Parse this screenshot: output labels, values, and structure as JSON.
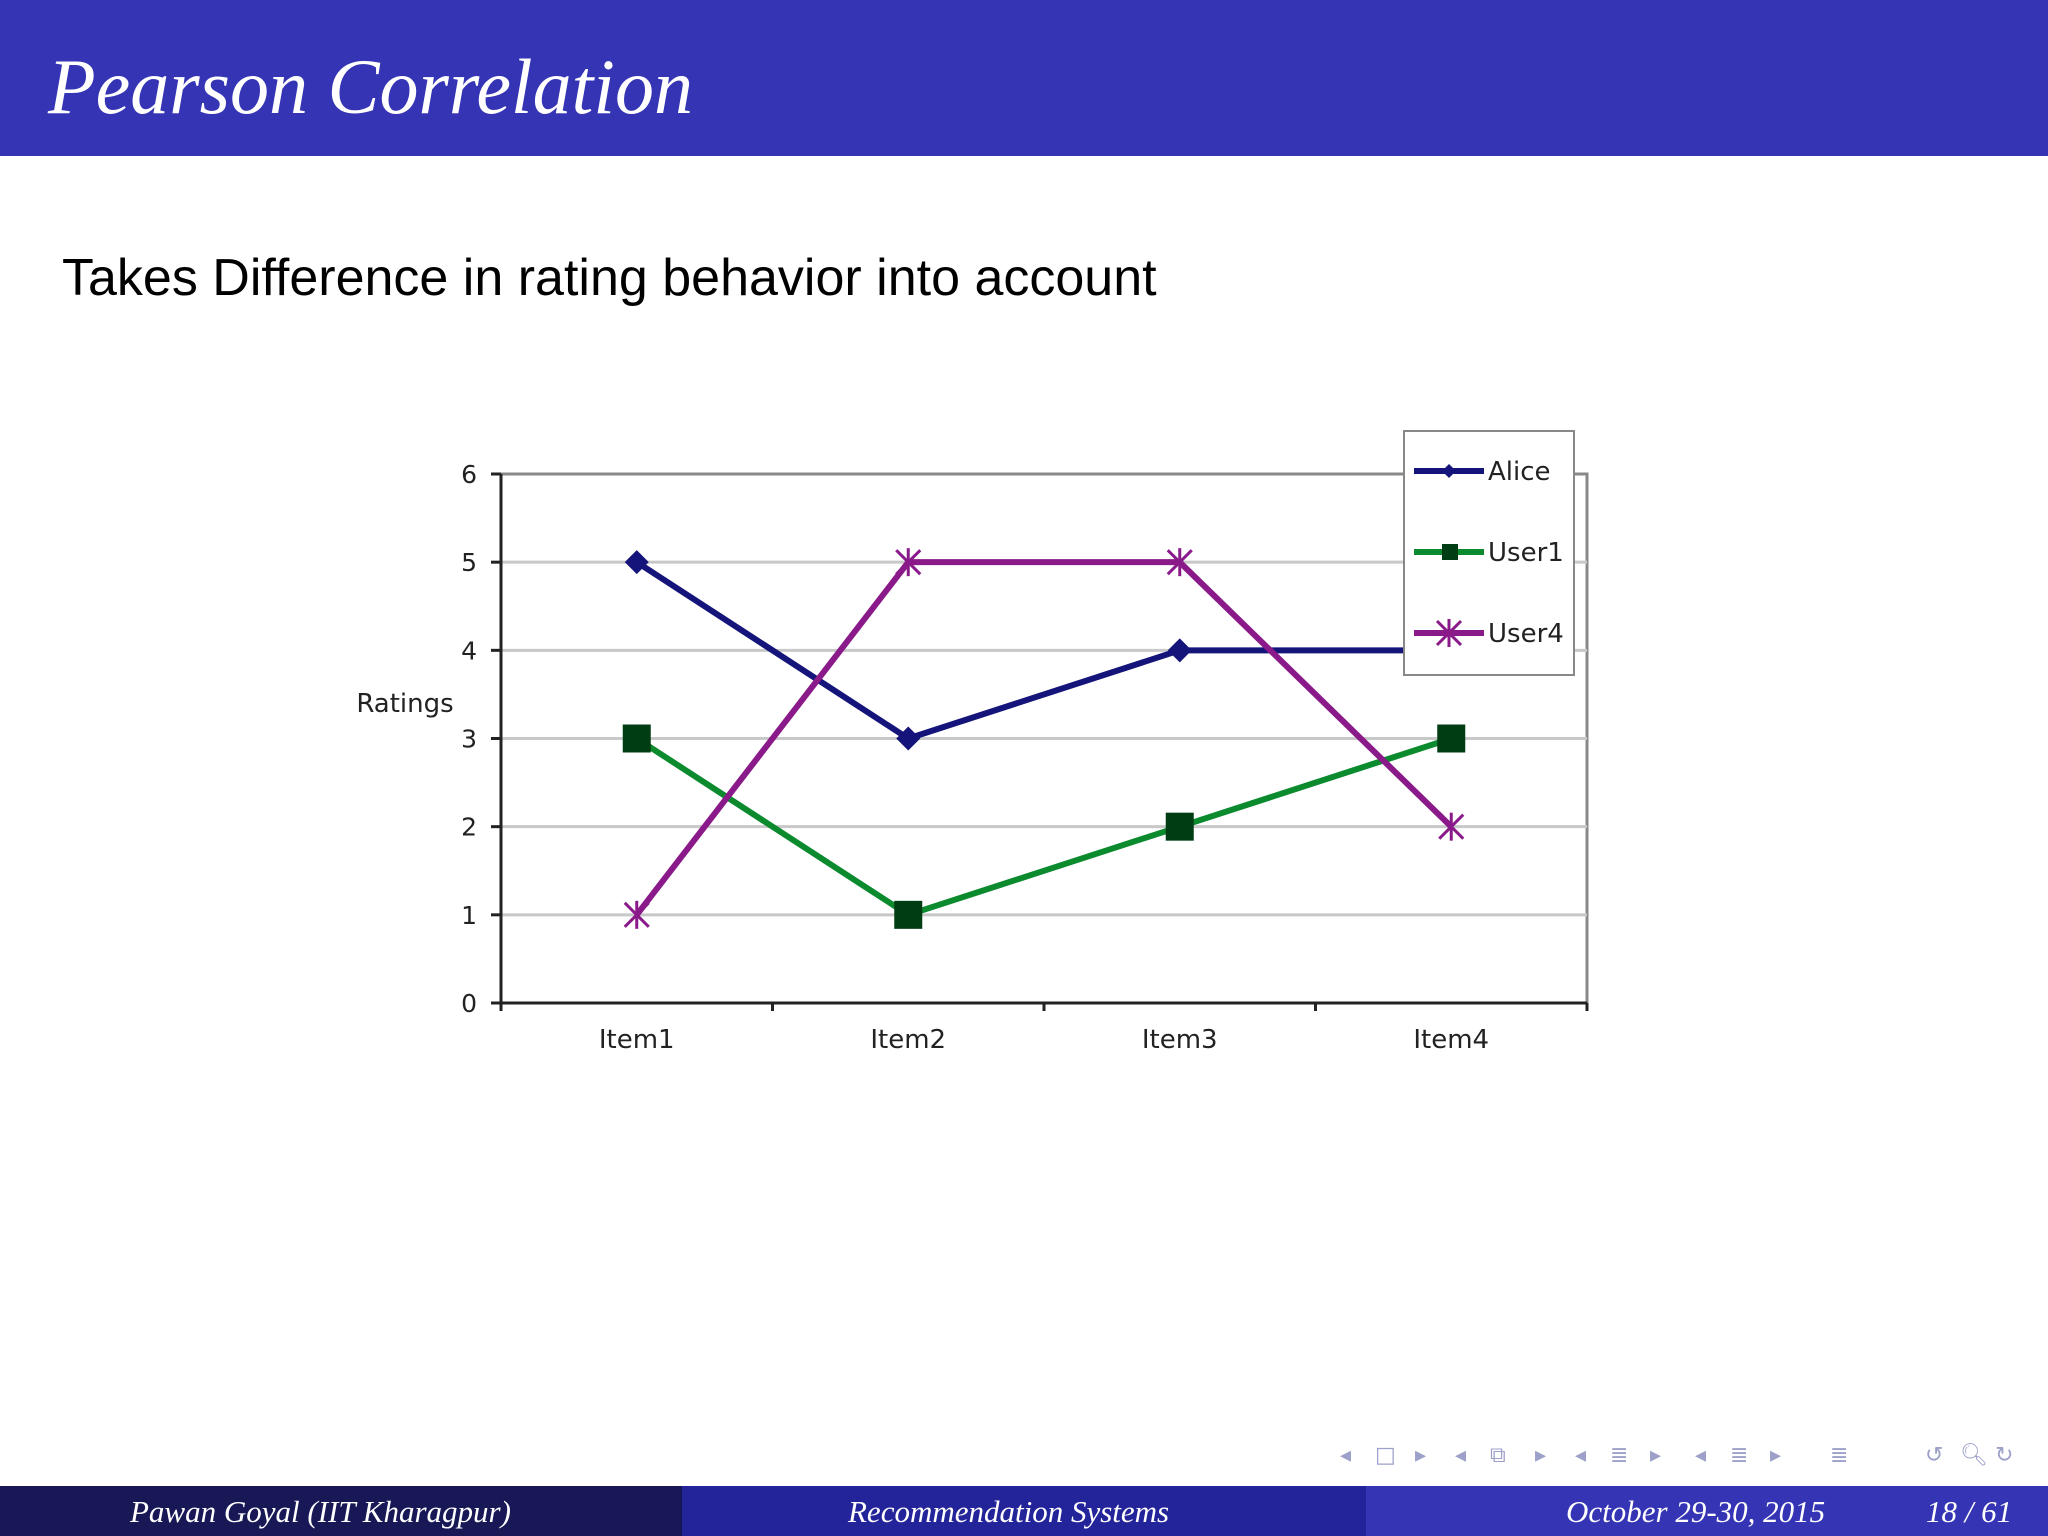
{
  "slide": {
    "title": "Pearson Correlation",
    "subtitle": "Takes Difference in rating behavior into account"
  },
  "chart_data": {
    "type": "line",
    "categories": [
      "Item1",
      "Item2",
      "Item3",
      "Item4"
    ],
    "ylabel": "Ratings",
    "xlabel": "",
    "ylim": [
      0,
      6
    ],
    "yticks": [
      0,
      1,
      2,
      3,
      4,
      5,
      6
    ],
    "grid": true,
    "legend_position": "top-right",
    "series": [
      {
        "name": "Alice",
        "values": [
          5,
          3,
          4,
          4
        ],
        "color": "#14147a",
        "marker": "diamond"
      },
      {
        "name": "User1",
        "values": [
          3,
          1,
          2,
          3
        ],
        "color": "#0b8a2e",
        "marker": "square",
        "marker_color": "#003d12"
      },
      {
        "name": "User4",
        "values": [
          1,
          5,
          5,
          2
        ],
        "color": "#8a1a8a",
        "marker": "asterisk"
      }
    ]
  },
  "footer": {
    "author": "Pawan Goyal  (IIT Kharagpur)",
    "course": "Recommendation Systems",
    "date": "October 29-30, 2015",
    "page": "18 / 61"
  },
  "nav_icons": [
    "nav-prev-frame-icon",
    "nav-frame-icon",
    "nav-next-frame-icon",
    "nav-prev-section-icon",
    "nav-section-icon",
    "nav-next-section-icon",
    "nav-prev-subsection-icon",
    "nav-subsection-icon",
    "nav-next-subsection-icon",
    "nav-align-icon",
    "nav-search-back-icon",
    "nav-search-icon",
    "nav-search-forward-icon"
  ]
}
